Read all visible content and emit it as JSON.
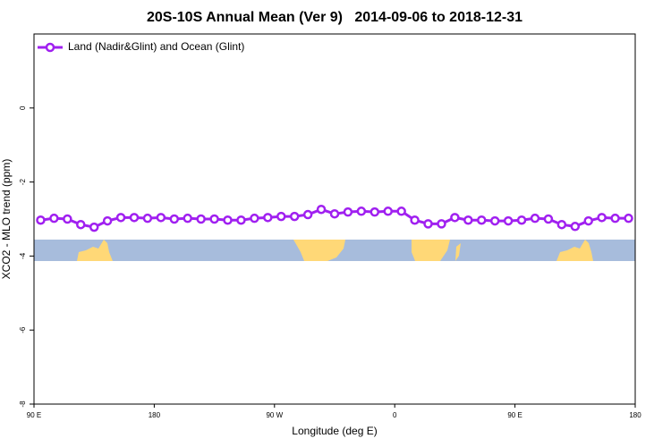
{
  "chart_data": {
    "type": "line",
    "title": "20S-10S Annual Mean (Ver 9)   2014-09-06 to 2018-12-31",
    "x_label": "Longitude (deg E)",
    "y_label": "XCO2 - MLO trend (ppm)",
    "x": [
      95,
      105,
      115,
      125,
      135,
      145,
      155,
      165,
      175,
      185,
      195,
      205,
      215,
      225,
      235,
      245,
      255,
      265,
      275,
      285,
      295,
      305,
      315,
      325,
      335,
      345,
      355,
      365,
      375,
      385,
      395,
      405,
      415,
      425,
      435,
      445,
      455,
      465,
      475,
      485,
      495,
      505,
      515,
      525,
      535
    ],
    "series": [
      {
        "name": "Land (Nadir&Glint) and Ocean (Glint)",
        "color": "#a020f0",
        "values": [
          -3.03,
          -2.98,
          -3.0,
          -3.15,
          -3.22,
          -3.05,
          -2.96,
          -2.96,
          -2.98,
          -2.96,
          -3.0,
          -2.98,
          -3.0,
          -3.0,
          -3.03,
          -3.03,
          -2.98,
          -2.96,
          -2.93,
          -2.93,
          -2.88,
          -2.74,
          -2.86,
          -2.81,
          -2.79,
          -2.81,
          -2.79,
          -2.79,
          -3.03,
          -3.13,
          -3.13,
          -2.96,
          -3.03,
          -3.03,
          -3.05,
          -3.05,
          -3.03,
          -2.98,
          -3.0,
          -3.15,
          -3.2,
          -3.05,
          -2.96,
          -2.98,
          -2.98
        ]
      }
    ],
    "xlim": [
      90,
      540
    ],
    "xticks": [
      {
        "value": 90,
        "label": "90 E"
      },
      {
        "value": 180,
        "label": "180"
      },
      {
        "value": 270,
        "label": "90 W"
      },
      {
        "value": 360,
        "label": "0"
      },
      {
        "value": 450,
        "label": "90 E"
      },
      {
        "value": 540,
        "label": "180"
      }
    ],
    "ylim": [
      -8,
      2
    ],
    "yticks": [
      -8,
      -6,
      -4,
      -2,
      0
    ],
    "legend": "upper left"
  }
}
